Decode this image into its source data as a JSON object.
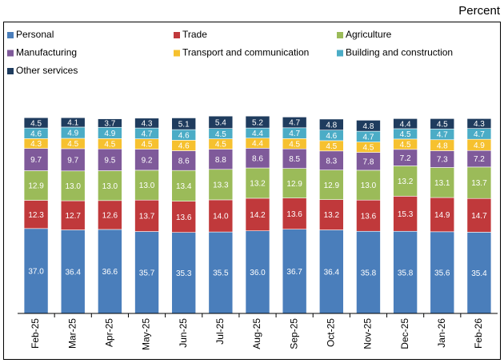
{
  "chart_data": {
    "type": "stacked_bar",
    "title": "Percent",
    "categories": [
      "Feb-25",
      "Mar-25",
      "Apr-25",
      "May-25",
      "Jun-25",
      "Jul-25",
      "Aug-25",
      "Sep-25",
      "Oct-25",
      "Nov-25",
      "Dec-25",
      "Jan-26",
      "Feb-26"
    ],
    "ylim": [
      0,
      100
    ],
    "series": [
      {
        "name": "Personal",
        "color": "#4a7ebb",
        "values": [
          37.0,
          36.4,
          36.6,
          35.7,
          35.3,
          35.5,
          36.0,
          36.7,
          36.4,
          35.8,
          35.8,
          35.6,
          35.4
        ],
        "value_labels": [
          "37.0",
          "36.4",
          "36.6",
          "35.7",
          "35.3",
          "35.5",
          "36.0",
          "36.7",
          "36.4",
          "35.8",
          "35.8",
          "35.6",
          "35.4"
        ]
      },
      {
        "name": "Trade",
        "color": "#c0393b",
        "values": [
          12.3,
          12.7,
          12.6,
          13.7,
          13.6,
          14.0,
          14.2,
          13.6,
          13.2,
          13.6,
          15.3,
          14.9,
          14.7
        ],
        "value_labels": [
          "12.3",
          "12.7",
          "12.6",
          "13.7",
          "13.6",
          "14.0",
          "14.2",
          "13.6",
          "13.2",
          "13.6",
          "15.3",
          "14.9",
          "14.7"
        ]
      },
      {
        "name": "Agriculture",
        "color": "#9bbb59",
        "values": [
          12.9,
          13.0,
          13.0,
          13.0,
          13.4,
          13.3,
          13.2,
          12.9,
          12.9,
          13.0,
          13.2,
          13.1,
          13.7
        ],
        "value_labels": [
          "12.9",
          "13.0",
          "13.0",
          "13.0",
          "13.4",
          "13.3",
          "13.2",
          "12.9",
          "12.9",
          "13.0",
          "13.2",
          "13.1",
          "13.7"
        ]
      },
      {
        "name": "Manufacturing",
        "color": "#7f5a9a",
        "values": [
          9.7,
          9.7,
          9.5,
          9.2,
          8.6,
          8.8,
          8.6,
          8.5,
          8.3,
          7.8,
          7.2,
          7.3,
          7.2
        ],
        "value_labels": [
          "9.7",
          "9.7",
          "9.5",
          "9.2",
          "8.6",
          "8.8",
          "8.6",
          "8.5",
          "8.3",
          "7.8",
          "7.2",
          "7.3",
          "7.2"
        ]
      },
      {
        "name": "Transport and communication",
        "color": "#f6c12f",
        "values": [
          4.3,
          4.5,
          4.5,
          4.5,
          4.6,
          4.5,
          4.4,
          4.5,
          4.5,
          4.5,
          4.5,
          4.8,
          4.9
        ],
        "value_labels": [
          "4.3",
          "4.5",
          "4.5",
          "4.5",
          "4.6",
          "4.5",
          "4.4",
          "4.5",
          "4.5",
          "4.5",
          "4.5",
          "4.8",
          "4.9"
        ]
      },
      {
        "name": "Building and construction",
        "color": "#4bacc6",
        "values": [
          4.6,
          4.9,
          4.9,
          4.7,
          4.6,
          4.5,
          4.4,
          4.7,
          4.6,
          4.7,
          4.5,
          4.7,
          4.7
        ],
        "value_labels": [
          "4.6",
          "4.9",
          "4.9",
          "4.7",
          "4.6",
          "4.5",
          "4.4",
          "4.7",
          "4.6",
          "4.7",
          "4.5",
          "4.7",
          "4.7"
        ]
      },
      {
        "name": "Other services",
        "color": "#1f3c5e",
        "values": [
          4.5,
          4.1,
          3.7,
          4.3,
          5.1,
          5.4,
          5.2,
          4.7,
          4.8,
          4.8,
          4.4,
          4.5,
          4.3
        ],
        "value_labels": [
          "4.5",
          "4.1",
          "3.7",
          "4.3",
          "5.1",
          "5.4",
          "5.2",
          "4.7",
          "4.8",
          "4.8",
          "4.4",
          "4.5",
          "4.3"
        ]
      }
    ]
  }
}
